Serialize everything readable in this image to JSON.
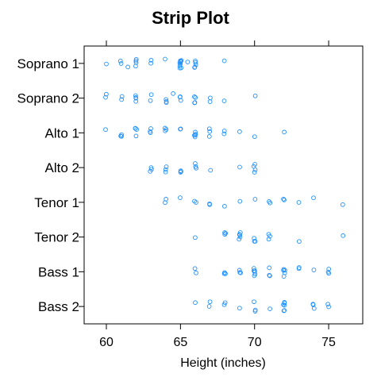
{
  "chart_data": {
    "type": "scatter",
    "subtype": "strip",
    "title": "Strip Plot",
    "xlabel": "Height (inches)",
    "ylabel": "",
    "xlim": [
      58.5,
      77.3
    ],
    "xticks": [
      60,
      65,
      70,
      75
    ],
    "tick_labels": [
      "60",
      "65",
      "70",
      "75"
    ],
    "grid": false,
    "point_color": "#1E90FF",
    "categories": [
      "Soprano 1",
      "Soprano 2",
      "Alto 1",
      "Alto 2",
      "Tenor 1",
      "Tenor 2",
      "Bass 1",
      "Bass 2"
    ],
    "series": [
      {
        "category": "Soprano 1",
        "values": [
          60,
          61,
          61,
          61.5,
          62,
          62,
          62,
          62,
          63,
          63,
          64,
          65,
          65,
          65,
          65,
          65,
          65,
          65,
          65,
          65,
          65.5,
          66,
          66,
          66,
          66,
          66,
          68
        ]
      },
      {
        "category": "Soprano 2",
        "values": [
          60,
          60,
          61,
          61,
          62,
          62,
          62,
          62,
          63,
          63,
          64,
          64,
          64,
          64.5,
          65,
          65,
          65,
          66,
          66,
          66,
          66,
          67,
          67,
          68,
          70
        ]
      },
      {
        "category": "Alto 1",
        "values": [
          60,
          61,
          61,
          61,
          62,
          62,
          62,
          62,
          63,
          63,
          63,
          64,
          64,
          64,
          65,
          65,
          66,
          66,
          66,
          66,
          66,
          67,
          67,
          67,
          68,
          68,
          69,
          70,
          72
        ]
      },
      {
        "category": "Alto 2",
        "values": [
          63,
          63,
          63,
          64,
          64,
          64,
          65,
          65,
          65,
          66,
          66,
          66,
          67,
          69,
          70,
          70,
          70,
          70
        ]
      },
      {
        "category": "Tenor 1",
        "values": [
          64,
          64,
          65,
          66,
          66,
          67,
          67,
          68,
          69,
          70,
          71,
          71,
          72,
          72,
          73,
          74,
          76
        ]
      },
      {
        "category": "Tenor 2",
        "values": [
          66,
          68,
          68,
          68,
          69,
          69,
          69,
          69,
          69,
          70,
          70,
          70,
          71,
          71,
          71,
          73,
          76
        ]
      },
      {
        "category": "Bass 1",
        "values": [
          66,
          66,
          68,
          68,
          68,
          69,
          69,
          69,
          70,
          70,
          70,
          70,
          70,
          70,
          71,
          71,
          71,
          72,
          72,
          72,
          72,
          72,
          73,
          73,
          74,
          75,
          75,
          75
        ]
      },
      {
        "category": "Bass 2",
        "values": [
          66,
          67,
          67,
          68,
          68,
          69,
          70,
          70,
          70,
          71,
          72,
          72,
          72,
          72,
          72,
          72,
          74,
          74,
          74,
          75,
          75
        ]
      }
    ]
  }
}
